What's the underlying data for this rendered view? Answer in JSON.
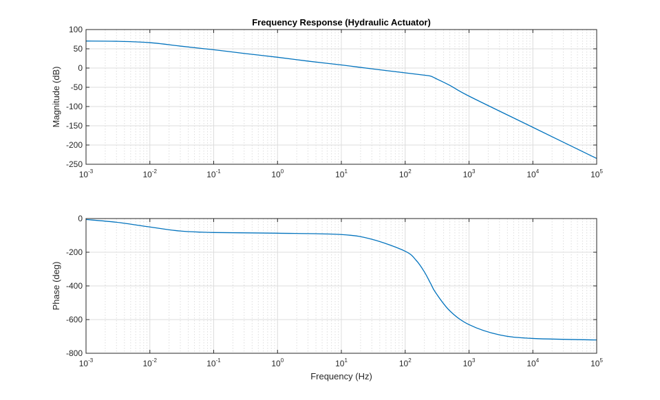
{
  "chart_data": [
    {
      "type": "line",
      "title": "Frequency Response (Hydraulic Actuator)",
      "xlabel": "",
      "ylabel": "Magnitude (dB)",
      "xscale": "log",
      "xlim": [
        0.001,
        100000
      ],
      "ylim": [
        -250,
        100
      ],
      "grid": true,
      "minor_grid": true,
      "line_color": "#0072BD",
      "xticks": [
        0.001,
        0.01,
        0.1,
        1,
        10,
        100,
        1000,
        10000,
        100000
      ],
      "xticklabels": [
        {
          "base": "10",
          "exp": "-3"
        },
        {
          "base": "10",
          "exp": "-2"
        },
        {
          "base": "10",
          "exp": "-1"
        },
        {
          "base": "10",
          "exp": "0"
        },
        {
          "base": "10",
          "exp": "1"
        },
        {
          "base": "10",
          "exp": "2"
        },
        {
          "base": "10",
          "exp": "3"
        },
        {
          "base": "10",
          "exp": "4"
        },
        {
          "base": "10",
          "exp": "5"
        }
      ],
      "yticks": [
        100,
        50,
        0,
        -50,
        -100,
        -150,
        -200,
        -250
      ],
      "yticklabels": [
        "100",
        "50",
        "0",
        "-50",
        "-100",
        "-150",
        "-200",
        "-250"
      ],
      "x": [
        0.001,
        0.003,
        0.01,
        0.03,
        0.1,
        0.3,
        1,
        3,
        10,
        30,
        100,
        200,
        250,
        300,
        500,
        1000,
        10000,
        100000
      ],
      "y": [
        70.2,
        69.5,
        66,
        57,
        47.5,
        38,
        28,
        18,
        8,
        -2,
        -12.5,
        -18.5,
        -21,
        -27,
        -45,
        -73,
        -154,
        -235
      ]
    },
    {
      "type": "line",
      "title": "",
      "xlabel": "Frequency (Hz)",
      "ylabel": "Phase (deg)",
      "xscale": "log",
      "xlim": [
        0.001,
        100000
      ],
      "ylim": [
        -800,
        0
      ],
      "grid": true,
      "minor_grid": true,
      "line_color": "#0072BD",
      "xticks": [
        0.001,
        0.01,
        0.1,
        1,
        10,
        100,
        1000,
        10000,
        100000
      ],
      "xticklabels": [
        {
          "base": "10",
          "exp": "-3"
        },
        {
          "base": "10",
          "exp": "-2"
        },
        {
          "base": "10",
          "exp": "-1"
        },
        {
          "base": "10",
          "exp": "0"
        },
        {
          "base": "10",
          "exp": "1"
        },
        {
          "base": "10",
          "exp": "2"
        },
        {
          "base": "10",
          "exp": "3"
        },
        {
          "base": "10",
          "exp": "4"
        },
        {
          "base": "10",
          "exp": "5"
        }
      ],
      "yticks": [
        0,
        -200,
        -400,
        -600,
        -800
      ],
      "yticklabels": [
        "0",
        "-200",
        "-400",
        "-600",
        "-800"
      ],
      "x": [
        0.001,
        0.003,
        0.01,
        0.03,
        0.1,
        1,
        10,
        30,
        100,
        150,
        200,
        250,
        300,
        500,
        1000,
        3000,
        10000,
        100000
      ],
      "y": [
        -5.5,
        -22,
        -50,
        -74,
        -83,
        -87,
        -95,
        -123,
        -194,
        -250,
        -317,
        -385,
        -440,
        -548,
        -630,
        -691,
        -712,
        -721
      ]
    }
  ]
}
